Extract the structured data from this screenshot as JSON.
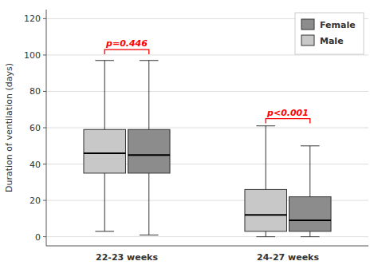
{
  "chart_data": {
    "type": "box",
    "ylabel": "Duration of ventilation (days)",
    "categories": [
      "22-23 weeks",
      "24-27 weeks"
    ],
    "series": [
      {
        "name": "Male",
        "color": "#c8c8c8",
        "values": [
          {
            "whislo": 3,
            "q1": 35,
            "med": 46,
            "q3": 59,
            "whishi": 97
          },
          {
            "whislo": 0,
            "q1": 3,
            "med": 12,
            "q3": 26,
            "whishi": 61
          }
        ]
      },
      {
        "name": "Female",
        "color": "#8c8c8c",
        "values": [
          {
            "whislo": 1,
            "q1": 35,
            "med": 45,
            "q3": 59,
            "whishi": 97
          },
          {
            "whislo": 0,
            "q1": 3,
            "med": 9,
            "q3": 22,
            "whishi": 50
          }
        ]
      }
    ],
    "ylim": [
      -5,
      125
    ],
    "yticks": [
      0,
      20,
      40,
      60,
      80,
      100,
      120
    ],
    "grid": true,
    "legend": "upper right",
    "annotations": [
      {
        "category": "22-23 weeks",
        "text": "p=0.446",
        "y": 103,
        "color": "red"
      },
      {
        "category": "24-27 weeks",
        "text": "p<0.001",
        "y": 65,
        "color": "red"
      }
    ]
  }
}
